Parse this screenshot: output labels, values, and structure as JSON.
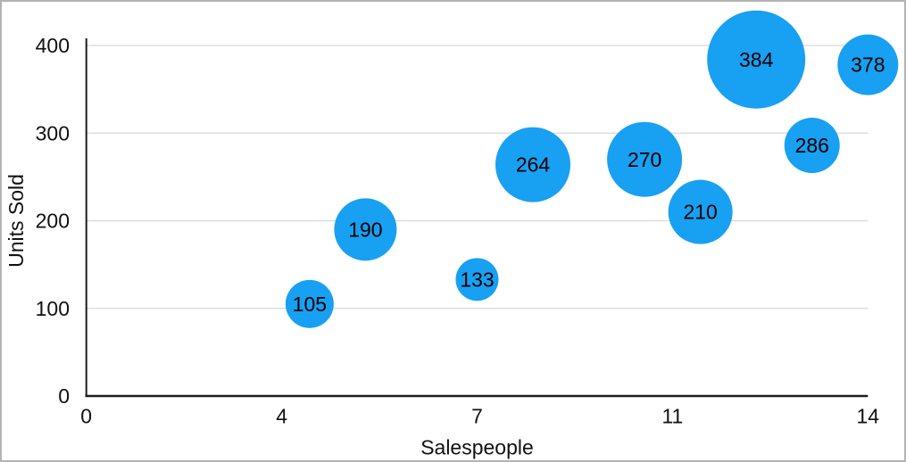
{
  "frame": {
    "background": "#ffffff",
    "border_color": "#b3b3b3"
  },
  "chart_data": {
    "type": "scatter",
    "subtype": "bubble",
    "title": "",
    "xlabel": "Salespeople",
    "ylabel": "Units Sold",
    "xlim": [
      0,
      14
    ],
    "ylim": [
      0,
      400
    ],
    "grid": "horizontal-only",
    "legend": "none",
    "x_ticks": [
      {
        "pos": 0,
        "label": "0"
      },
      {
        "pos": 3.5,
        "label": "4"
      },
      {
        "pos": 7,
        "label": "7"
      },
      {
        "pos": 10.5,
        "label": "11"
      },
      {
        "pos": 14,
        "label": "14"
      }
    ],
    "y_ticks": [
      {
        "value": 0,
        "label": "0"
      },
      {
        "value": 100,
        "label": "100"
      },
      {
        "value": 200,
        "label": "200"
      },
      {
        "value": 300,
        "label": "300"
      },
      {
        "value": 400,
        "label": "400"
      }
    ],
    "points": [
      {
        "x": 4,
        "y": 105,
        "label": "105",
        "radius_px": 27
      },
      {
        "x": 5,
        "y": 190,
        "label": "190",
        "radius_px": 35
      },
      {
        "x": 7,
        "y": 133,
        "label": "133",
        "radius_px": 24
      },
      {
        "x": 8,
        "y": 264,
        "label": "264",
        "radius_px": 42
      },
      {
        "x": 10,
        "y": 270,
        "label": "270",
        "radius_px": 42
      },
      {
        "x": 11,
        "y": 210,
        "label": "210",
        "radius_px": 36
      },
      {
        "x": 12,
        "y": 384,
        "label": "384",
        "radius_px": 55
      },
      {
        "x": 13,
        "y": 286,
        "label": "286",
        "radius_px": 31
      },
      {
        "x": 14,
        "y": 378,
        "label": "378",
        "radius_px": 34
      }
    ],
    "colors": {
      "bubble_fill": "#18a0f2",
      "bubble_label": "#000000",
      "axis_line": "#1d1d1d",
      "gridline": "#d7d7d7",
      "tick_text": "#111111"
    }
  }
}
